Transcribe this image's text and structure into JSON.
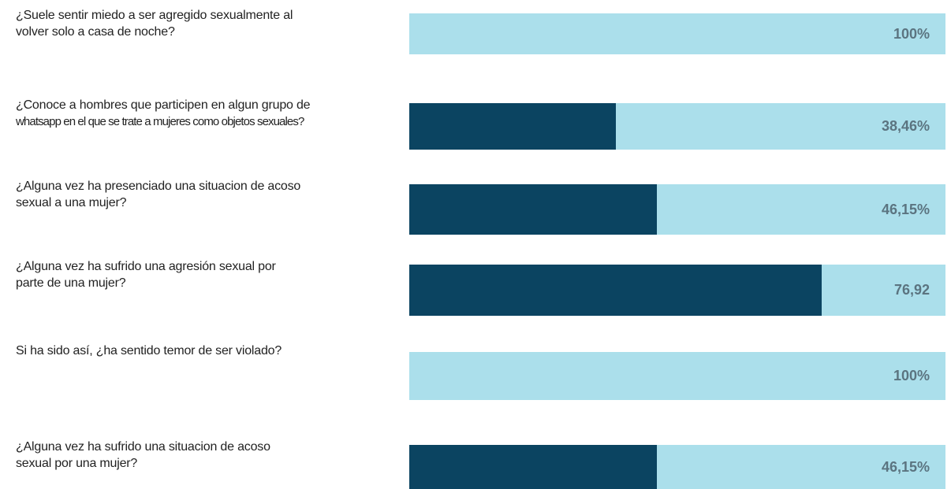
{
  "chart_data": {
    "type": "bar",
    "orientation": "horizontal",
    "categories": [
      [
        "¿Suele sentir miedo a ser agregido sexualmente al",
        "volver solo a casa de noche?"
      ],
      [
        "¿Conoce a hombres que participen en algun grupo de",
        "whatsapp en el que se trate a mujeres como objetos sexuales?"
      ],
      [
        "¿Alguna vez ha presenciado una situacion de acoso",
        "sexual a una mujer?"
      ],
      [
        "¿Alguna vez ha sufrido una agresión sexual por",
        "parte de una mujer?"
      ],
      [
        "Si ha sido así, ¿ha sentido temor de ser violado?"
      ],
      [
        "¿Alguna vez ha sufrido una situacion de acoso",
        "sexual por una mujer?"
      ]
    ],
    "values": [
      100,
      38.46,
      46.15,
      76.92,
      100,
      46.15
    ],
    "value_labels": [
      "100%",
      "38,46%",
      "46,15%",
      "76,92",
      "100%",
      "46,15%"
    ],
    "colors": [
      "#abdfeb",
      "#0b4461",
      "#0b4461",
      "#0b4461",
      "#abdfeb",
      "#0b4461"
    ],
    "track_color": "#abdfeb",
    "xlim": [
      0,
      100
    ]
  }
}
